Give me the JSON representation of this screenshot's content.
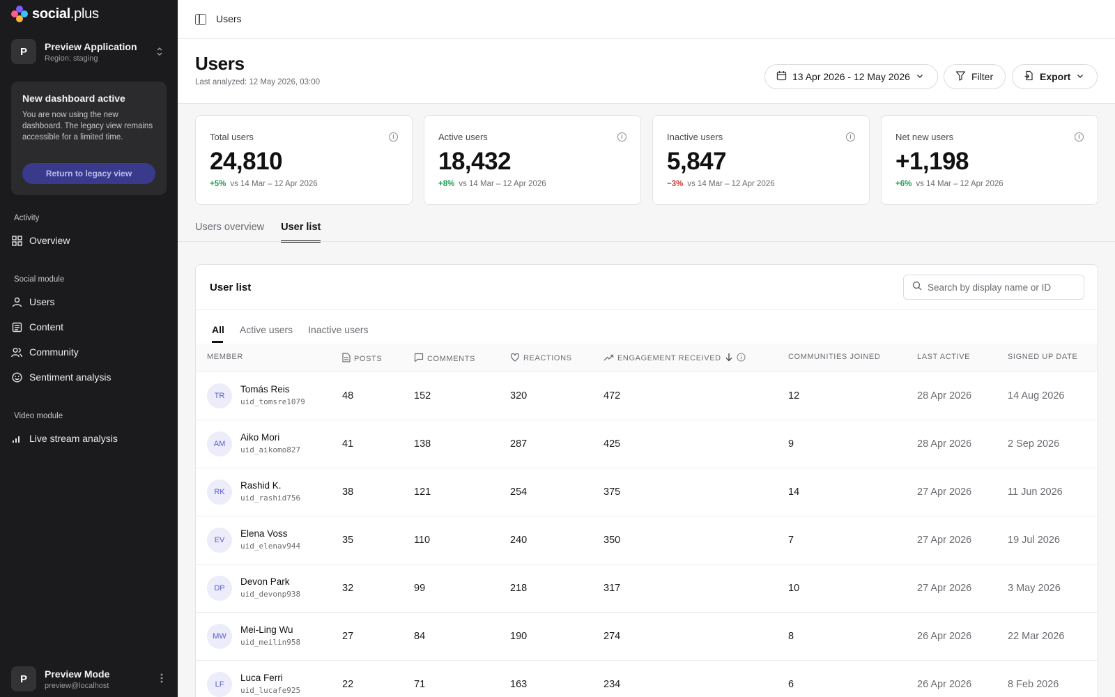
{
  "brand": {
    "name_bold": "social",
    "name_rest": ".plus"
  },
  "app": {
    "avatar": "P",
    "name": "Preview Application",
    "region": "Region: staging"
  },
  "notice": {
    "title": "New dashboard active",
    "body": "You are now using the new dashboard. The legacy view remains accessible for a limited time.",
    "button": "Return to legacy view"
  },
  "nav": {
    "sections": [
      {
        "label": "Activity",
        "items": [
          {
            "label": "Overview",
            "icon": "grid-icon"
          }
        ]
      },
      {
        "label": "Social module",
        "items": [
          {
            "label": "Users",
            "icon": "user-icon"
          },
          {
            "label": "Content",
            "icon": "document-icon"
          },
          {
            "label": "Community",
            "icon": "users-icon"
          },
          {
            "label": "Sentiment analysis",
            "icon": "smile-icon"
          }
        ]
      },
      {
        "label": "Video module",
        "items": [
          {
            "label": "Live stream analysis",
            "icon": "bar-chart-icon"
          }
        ]
      }
    ]
  },
  "footer_user": {
    "avatar": "P",
    "name": "Preview Mode",
    "email": "preview@localhost"
  },
  "topbar": {
    "breadcrumb": "Users"
  },
  "header": {
    "title": "Users",
    "last_analyzed": "Last analyzed: 12 May 2026, 03:00",
    "date_range": "13 Apr 2026 - 12 May 2026",
    "filter_label": "Filter",
    "export_label": "Export"
  },
  "stats": [
    {
      "label": "Total users",
      "value": "24,810",
      "delta": "+5%",
      "delta_color": "#1a9e4b",
      "compare": "vs 14 Mar – 12 Apr 2026"
    },
    {
      "label": "Active users",
      "value": "18,432",
      "delta": "+8%",
      "delta_color": "#1a9e4b",
      "compare": "vs 14 Mar – 12 Apr 2026"
    },
    {
      "label": "Inactive users",
      "value": "5,847",
      "delta": "−3%",
      "delta_color": "#d13b3b",
      "compare": "vs 14 Mar – 12 Apr 2026"
    },
    {
      "label": "Net new users",
      "value": "+1,198",
      "delta": "+6%",
      "delta_color": "#1a9e4b",
      "compare": "vs 14 Mar – 12 Apr 2026"
    }
  ],
  "tabs": [
    {
      "label": "Users overview",
      "active": false
    },
    {
      "label": "User list",
      "active": true
    }
  ],
  "user_list": {
    "title": "User list",
    "search_placeholder": "Search by display name or ID",
    "subtabs": [
      {
        "label": "All",
        "active": true
      },
      {
        "label": "Active users",
        "active": false
      },
      {
        "label": "Inactive users",
        "active": false
      }
    ],
    "columns": [
      "Member",
      "Posts",
      "Comments",
      "Reactions",
      "Engagement received",
      "Communities joined",
      "Last active",
      "Signed up date"
    ],
    "rows": [
      {
        "initials": "TR",
        "name": "Tomás Reis",
        "uid": "uid_tomsre1079",
        "posts": "48",
        "comments": "152",
        "reactions": "320",
        "engagement": "472",
        "communities": "12",
        "last_active": "28 Apr 2026",
        "signed_up": "14 Aug 2026"
      },
      {
        "initials": "AM",
        "name": "Aiko Mori",
        "uid": "uid_aikomo827",
        "posts": "41",
        "comments": "138",
        "reactions": "287",
        "engagement": "425",
        "communities": "9",
        "last_active": "28 Apr 2026",
        "signed_up": "2 Sep 2026"
      },
      {
        "initials": "RK",
        "name": "Rashid K.",
        "uid": "uid_rashid756",
        "posts": "38",
        "comments": "121",
        "reactions": "254",
        "engagement": "375",
        "communities": "14",
        "last_active": "27 Apr 2026",
        "signed_up": "11 Jun 2026"
      },
      {
        "initials": "EV",
        "name": "Elena Voss",
        "uid": "uid_elenav944",
        "posts": "35",
        "comments": "110",
        "reactions": "240",
        "engagement": "350",
        "communities": "7",
        "last_active": "27 Apr 2026",
        "signed_up": "19 Jul 2026"
      },
      {
        "initials": "DP",
        "name": "Devon Park",
        "uid": "uid_devonp938",
        "posts": "32",
        "comments": "99",
        "reactions": "218",
        "engagement": "317",
        "communities": "10",
        "last_active": "27 Apr 2026",
        "signed_up": "3 May 2026"
      },
      {
        "initials": "MW",
        "name": "Mei-Ling Wu",
        "uid": "uid_meilin958",
        "posts": "27",
        "comments": "84",
        "reactions": "190",
        "engagement": "274",
        "communities": "8",
        "last_active": "26 Apr 2026",
        "signed_up": "22 Mar 2026"
      },
      {
        "initials": "LF",
        "name": "Luca Ferri",
        "uid": "uid_lucafe925",
        "posts": "22",
        "comments": "71",
        "reactions": "163",
        "engagement": "234",
        "communities": "6",
        "last_active": "26 Apr 2026",
        "signed_up": "8 Feb 2026"
      }
    ]
  }
}
